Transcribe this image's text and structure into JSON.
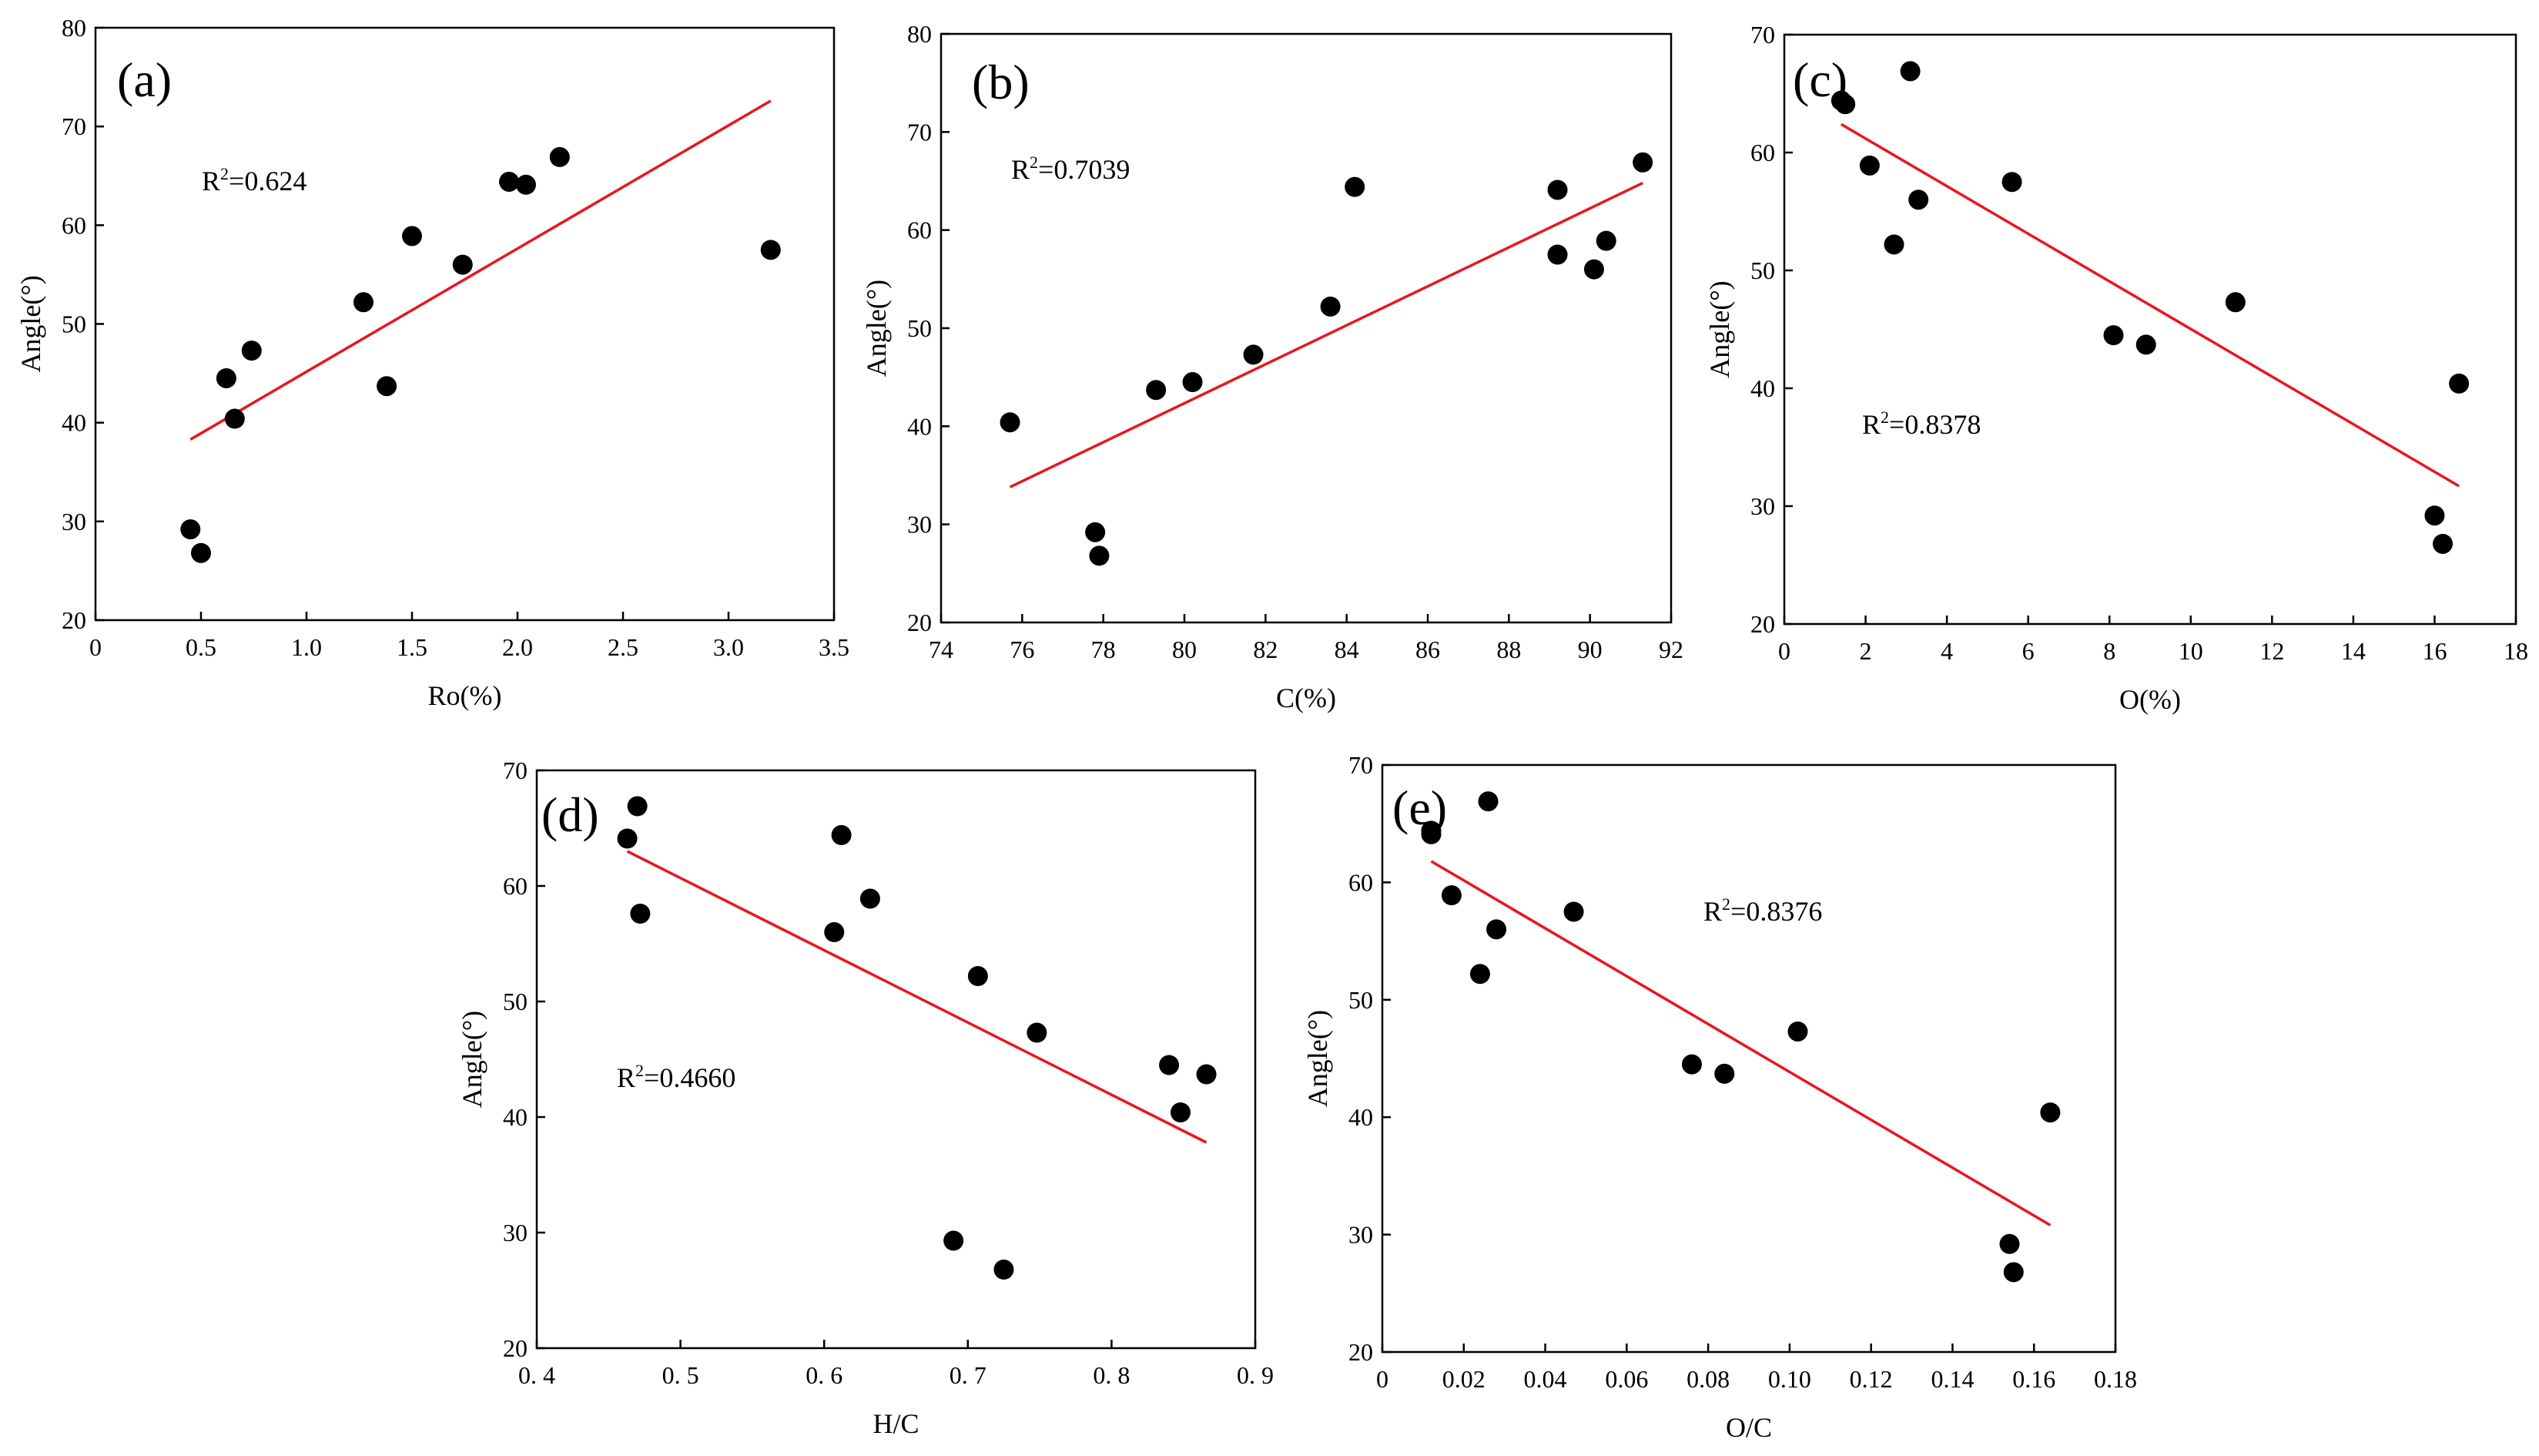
{
  "chart_data": [
    {
      "id": "a",
      "type": "scatter",
      "panel_label": "(a)",
      "xlabel": "Ro(%)",
      "ylabel": "Angle(°)",
      "xlim": [
        0,
        3.5
      ],
      "ylim": [
        20,
        80
      ],
      "xticks": [
        0,
        0.5,
        1.0,
        1.5,
        2.0,
        2.5,
        3.0,
        3.5
      ],
      "xtick_labels": [
        "0",
        "0.5",
        "1.0",
        "1.5",
        "2.0",
        "2.5",
        "3.0",
        "3.5"
      ],
      "yticks": [
        20,
        30,
        40,
        50,
        60,
        70,
        80
      ],
      "ytick_labels": [
        "20",
        "30",
        "40",
        "50",
        "60",
        "70",
        "80"
      ],
      "r2_label": {
        "prefix": "R",
        "sup": "2",
        "value": "=0.624"
      },
      "points": [
        [
          0.45,
          29.2
        ],
        [
          0.5,
          26.8
        ],
        [
          0.62,
          44.5
        ],
        [
          0.66,
          40.4
        ],
        [
          0.74,
          47.3
        ],
        [
          1.27,
          52.2
        ],
        [
          1.38,
          43.7
        ],
        [
          1.5,
          58.9
        ],
        [
          1.74,
          56.0
        ],
        [
          1.96,
          64.4
        ],
        [
          2.04,
          64.1
        ],
        [
          2.2,
          66.9
        ],
        [
          3.2,
          57.5
        ]
      ],
      "fit": {
        "x": [
          0.45,
          3.2
        ],
        "y": [
          38.3,
          72.6
        ]
      }
    },
    {
      "id": "b",
      "type": "scatter",
      "panel_label": "(b)",
      "xlabel": "C(%)",
      "ylabel": "Angle(°)",
      "xlim": [
        74,
        92
      ],
      "ylim": [
        20,
        80
      ],
      "xticks": [
        74,
        76,
        78,
        80,
        82,
        84,
        86,
        88,
        90,
        92
      ],
      "xtick_labels": [
        "74",
        "76",
        "78",
        "80",
        "82",
        "84",
        "86",
        "88",
        "90",
        "92"
      ],
      "yticks": [
        20,
        30,
        40,
        50,
        60,
        70,
        80
      ],
      "ytick_labels": [
        "20",
        "30",
        "40",
        "50",
        "60",
        "70",
        "80"
      ],
      "r2_label": {
        "prefix": "R",
        "sup": "2",
        "value": "=0.7039"
      },
      "points": [
        [
          75.7,
          40.4
        ],
        [
          77.8,
          29.2
        ],
        [
          77.9,
          26.8
        ],
        [
          79.3,
          43.7
        ],
        [
          80.2,
          44.5
        ],
        [
          81.7,
          47.3
        ],
        [
          83.6,
          52.2
        ],
        [
          84.2,
          64.4
        ],
        [
          89.2,
          64.1
        ],
        [
          89.2,
          57.5
        ],
        [
          90.1,
          56.0
        ],
        [
          90.4,
          58.9
        ],
        [
          91.3,
          66.9
        ]
      ],
      "fit": {
        "x": [
          75.7,
          91.3
        ],
        "y": [
          33.8,
          64.8
        ]
      }
    },
    {
      "id": "c",
      "type": "scatter",
      "panel_label": "(c)",
      "xlabel": "O(%)",
      "ylabel": "Angle(°)",
      "xlim": [
        0,
        18
      ],
      "ylim": [
        20,
        70
      ],
      "xticks": [
        0,
        2,
        4,
        6,
        8,
        10,
        12,
        14,
        16,
        18
      ],
      "xtick_labels": [
        "0",
        "2",
        "4",
        "6",
        "8",
        "10",
        "12",
        "14",
        "16",
        "18"
      ],
      "yticks": [
        20,
        30,
        40,
        50,
        60,
        70
      ],
      "ytick_labels": [
        "20",
        "30",
        "40",
        "50",
        "60",
        "70"
      ],
      "r2_label": {
        "prefix": "R",
        "sup": "2",
        "value": "=0.8378"
      },
      "points": [
        [
          1.4,
          64.4
        ],
        [
          1.5,
          64.1
        ],
        [
          2.1,
          58.9
        ],
        [
          2.7,
          52.2
        ],
        [
          3.1,
          66.9
        ],
        [
          3.3,
          56.0
        ],
        [
          5.6,
          57.5
        ],
        [
          8.1,
          44.5
        ],
        [
          8.9,
          43.7
        ],
        [
          11.1,
          47.3
        ],
        [
          16.0,
          29.2
        ],
        [
          16.2,
          26.8
        ],
        [
          16.6,
          40.4
        ]
      ],
      "fit": {
        "x": [
          1.4,
          16.6
        ],
        "y": [
          62.4,
          31.7
        ]
      }
    },
    {
      "id": "d",
      "type": "scatter",
      "panel_label": "(d)",
      "xlabel": "H/C",
      "ylabel": "Angle(°)",
      "xlim": [
        0.4,
        0.9
      ],
      "ylim": [
        20,
        70
      ],
      "xticks": [
        0.4,
        0.5,
        0.6,
        0.7,
        0.8,
        0.9
      ],
      "xtick_labels": [
        "0. 4",
        "0. 5",
        "0. 6",
        "0. 7",
        "0. 8",
        "0. 9"
      ],
      "yticks": [
        20,
        30,
        40,
        50,
        60,
        70
      ],
      "ytick_labels": [
        "20",
        "30",
        "40",
        "50",
        "60",
        "70"
      ],
      "r2_label": {
        "prefix": "R",
        "sup": "2",
        "value": "=0.4660"
      },
      "points": [
        [
          0.463,
          64.1
        ],
        [
          0.47,
          66.9
        ],
        [
          0.472,
          57.6
        ],
        [
          0.607,
          56.0
        ],
        [
          0.612,
          64.4
        ],
        [
          0.632,
          58.9
        ],
        [
          0.69,
          29.3
        ],
        [
          0.707,
          52.2
        ],
        [
          0.725,
          26.8
        ],
        [
          0.748,
          47.3
        ],
        [
          0.84,
          44.5
        ],
        [
          0.848,
          40.4
        ],
        [
          0.866,
          43.7
        ]
      ],
      "fit": {
        "x": [
          0.463,
          0.866
        ],
        "y": [
          63.0,
          37.8
        ]
      }
    },
    {
      "id": "e",
      "type": "scatter",
      "panel_label": "(e)",
      "xlabel": "O/C",
      "ylabel": "Angle(°)",
      "xlim": [
        0,
        0.18
      ],
      "ylim": [
        20,
        70
      ],
      "xticks": [
        0,
        0.02,
        0.04,
        0.06,
        0.08,
        0.1,
        0.12,
        0.14,
        0.16,
        0.18
      ],
      "xtick_labels": [
        "0",
        "0.02",
        "0.04",
        "0.06",
        "0.08",
        "0.10",
        "0.12",
        "0.14",
        "0.16",
        "0.18"
      ],
      "yticks": [
        20,
        30,
        40,
        50,
        60,
        70
      ],
      "ytick_labels": [
        "20",
        "30",
        "40",
        "50",
        "60",
        "70"
      ],
      "r2_label": {
        "prefix": "R",
        "sup": "2",
        "value": "=0.8376"
      },
      "points": [
        [
          0.012,
          64.4
        ],
        [
          0.012,
          64.1
        ],
        [
          0.017,
          58.9
        ],
        [
          0.024,
          52.2
        ],
        [
          0.026,
          66.9
        ],
        [
          0.028,
          56.0
        ],
        [
          0.047,
          57.5
        ],
        [
          0.076,
          44.5
        ],
        [
          0.084,
          43.7
        ],
        [
          0.102,
          47.3
        ],
        [
          0.154,
          29.2
        ],
        [
          0.155,
          26.8
        ],
        [
          0.164,
          40.4
        ]
      ],
      "fit": {
        "x": [
          0.012,
          0.164
        ],
        "y": [
          61.8,
          30.8
        ]
      }
    }
  ]
}
